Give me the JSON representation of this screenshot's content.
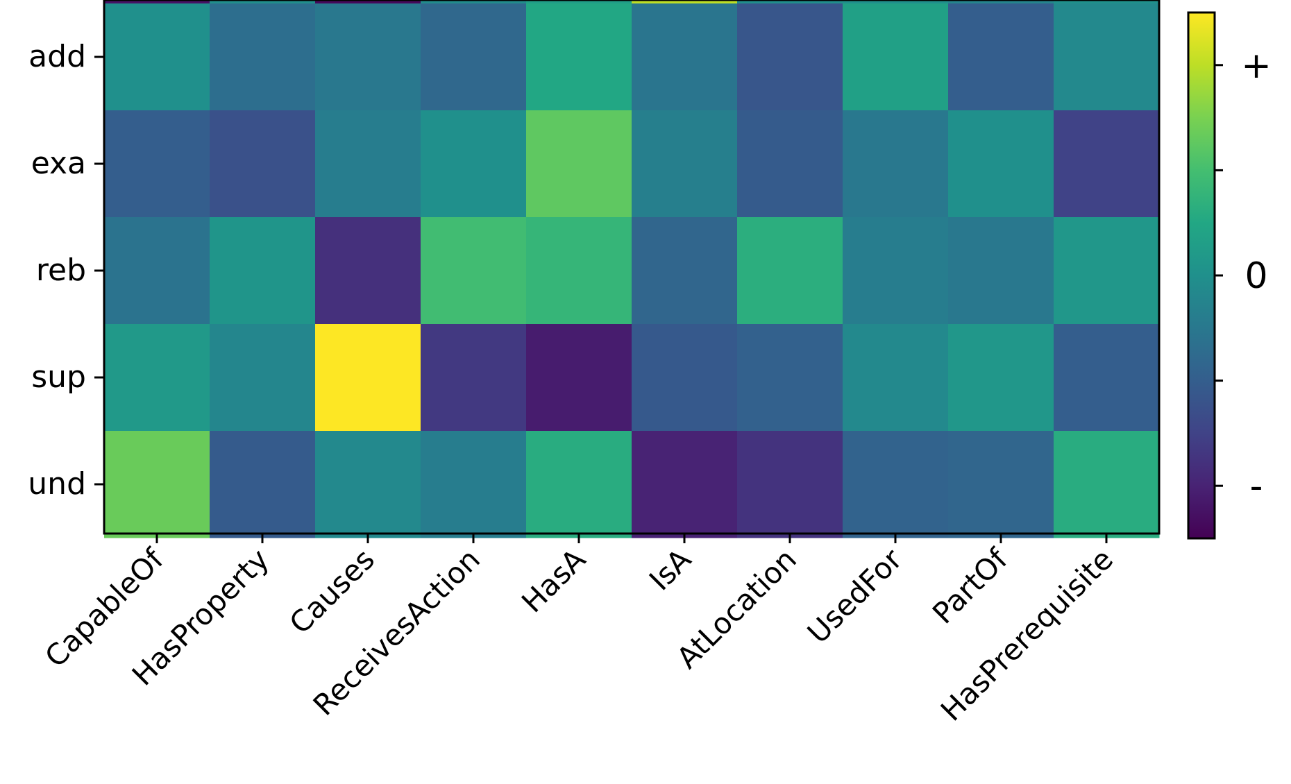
{
  "chart_data": {
    "type": "heatmap",
    "rows": [
      "add",
      "exa",
      "reb",
      "sup",
      "und"
    ],
    "columns": [
      "CapableOf",
      "HasProperty",
      "Causes",
      "ReceivesAction",
      "HasA",
      "IsA",
      "AtLocation",
      "UsedFor",
      "PartOf",
      "HasPrerequisite"
    ],
    "values": [
      [
        0.5,
        0.36,
        0.4,
        0.34,
        0.6,
        0.39,
        0.27,
        0.57,
        0.3,
        0.47
      ],
      [
        0.3,
        0.25,
        0.42,
        0.5,
        0.75,
        0.43,
        0.29,
        0.4,
        0.5,
        0.2
      ],
      [
        0.38,
        0.52,
        0.14,
        0.69,
        0.66,
        0.33,
        0.63,
        0.42,
        0.4,
        0.53
      ],
      [
        0.54,
        0.46,
        1.0,
        0.17,
        0.08,
        0.28,
        0.31,
        0.47,
        0.53,
        0.3
      ],
      [
        0.77,
        0.29,
        0.47,
        0.42,
        0.62,
        0.1,
        0.15,
        0.32,
        0.33,
        0.62
      ]
    ],
    "partial_top_row": [
      0.05,
      0.49,
      0.02,
      0.48,
      0.56,
      0.9,
      0.49,
      0.5,
      0.45,
      0.5
    ],
    "colorscale": "viridis",
    "colorbar": {
      "tick_labels": [
        "+",
        "",
        "0",
        "",
        "-"
      ],
      "tick_values": [
        0.9,
        0.7,
        0.5,
        0.3,
        0.1
      ]
    },
    "xlabel": "",
    "ylabel": "",
    "title": ""
  }
}
